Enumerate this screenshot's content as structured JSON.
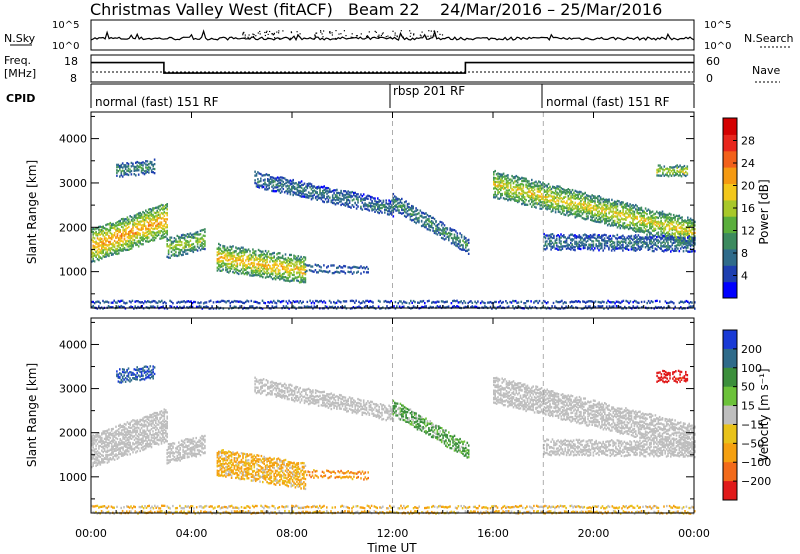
{
  "chart_data": {
    "type": "heatmap",
    "header": {
      "station": "Christmas Valley West (fitACF)",
      "beam": "Beam 22",
      "date_range": "24/Mar/2016 – 25/Mar/2016"
    },
    "x_axis": {
      "label": "Time UT",
      "ticks": [
        "00:00",
        "04:00",
        "08:00",
        "12:00",
        "16:00",
        "20:00",
        "00:00"
      ],
      "range_hours": [
        0,
        24
      ]
    },
    "noise_panel": {
      "left_label": "N.Sky",
      "right_label": "N.Search",
      "left_ticks": [
        "10^5",
        "10^0"
      ],
      "right_ticks": [
        "10^5",
        "10^0"
      ]
    },
    "freq_panel": {
      "left_label_1": "Freq.",
      "left_label_2": "[MHz]",
      "right_label": "Nave",
      "left_ticks": [
        "18",
        "8"
      ],
      "right_ticks": [
        "60",
        "0"
      ],
      "freq_mhz_steps": [
        {
          "start": 0,
          "end": 2.9,
          "value": 15.2
        },
        {
          "start": 2.9,
          "end": 14.9,
          "value": 11.3
        },
        {
          "start": 14.9,
          "end": 24,
          "value": 15.2
        }
      ]
    },
    "cpid": {
      "label": "CPID",
      "segments": [
        {
          "start": 0,
          "end": 12,
          "name": "normal (fast) 151 RF"
        },
        {
          "start": 12,
          "end": 18,
          "name": "rbsp 201 RF"
        },
        {
          "start": 18,
          "end": 24,
          "name": "normal (fast) 151 RF"
        }
      ]
    },
    "power_panel": {
      "ylabel": "Slant Range [km]",
      "yticks": [
        1000,
        2000,
        3000,
        4000
      ],
      "ylim": [
        180,
        4600
      ],
      "colorbar_label": "Power [dB]",
      "colorbar_ticks": [
        "4",
        "8",
        "12",
        "16",
        "20",
        "24",
        "28"
      ],
      "colorbar_range": [
        0,
        32
      ]
    },
    "velocity_panel": {
      "ylabel": "Slant Range [km]",
      "yticks": [
        1000,
        2000,
        3000,
        4000
      ],
      "ylim": [
        180,
        4600
      ],
      "colorbar_label": "Velocity [m s⁻¹]",
      "colorbar_ticks": [
        "200",
        "100",
        "50",
        "15",
        "−15",
        "−50",
        "−100",
        "−200"
      ]
    },
    "scatter_bands": [
      {
        "t_start": 0.0,
        "t_end": 3.0,
        "range_center_start": 1600,
        "range_center_end": 2200,
        "width_km": 700,
        "power_db": 22,
        "velocity_ms": 0,
        "ground_scatter": true
      },
      {
        "t_start": 3.0,
        "t_end": 4.5,
        "range_center_start": 1550,
        "range_center_end": 1750,
        "width_km": 400,
        "power_db": 16,
        "velocity_ms": 0,
        "ground_scatter": true
      },
      {
        "t_start": 5.0,
        "t_end": 8.5,
        "range_center_start": 1350,
        "range_center_end": 1050,
        "width_km": 550,
        "power_db": 20,
        "velocity_ms": -40,
        "ground_scatter": false
      },
      {
        "t_start": 8.5,
        "t_end": 11.0,
        "range_center_start": 1100,
        "range_center_end": 1050,
        "width_km": 120,
        "power_db": 10,
        "velocity_ms": -60,
        "ground_scatter": false
      },
      {
        "t_start": 6.5,
        "t_end": 12.0,
        "range_center_start": 3100,
        "range_center_end": 2450,
        "width_km": 300,
        "power_db": 8,
        "velocity_ms": 0,
        "ground_scatter": true
      },
      {
        "t_start": 12.0,
        "t_end": 15.0,
        "range_center_start": 2600,
        "range_center_end": 1600,
        "width_km": 300,
        "power_db": 10,
        "velocity_ms": 40,
        "ground_scatter": false
      },
      {
        "t_start": 16.0,
        "t_end": 24.0,
        "range_center_start": 3000,
        "range_center_end": 1900,
        "width_km": 550,
        "power_db": 18,
        "velocity_ms": 0,
        "ground_scatter": true
      },
      {
        "t_start": 18.0,
        "t_end": 24.0,
        "range_center_start": 1700,
        "range_center_end": 1650,
        "width_km": 300,
        "power_db": 8,
        "velocity_ms": 0,
        "ground_scatter": true
      },
      {
        "t_start": 22.5,
        "t_end": 23.7,
        "range_center_start": 3300,
        "range_center_end": 3300,
        "width_km": 200,
        "power_db": 18,
        "velocity_ms": -180,
        "ground_scatter": false
      },
      {
        "t_start": 1.0,
        "t_end": 2.5,
        "range_center_start": 3300,
        "range_center_end": 3400,
        "width_km": 250,
        "power_db": 10,
        "velocity_ms": 150,
        "ground_scatter": false
      },
      {
        "t_start": 0.0,
        "t_end": 24.0,
        "range_center_start": 280,
        "range_center_end": 280,
        "width_km": 120,
        "power_db": 8,
        "velocity_ms": -30,
        "ground_scatter": false
      }
    ]
  }
}
